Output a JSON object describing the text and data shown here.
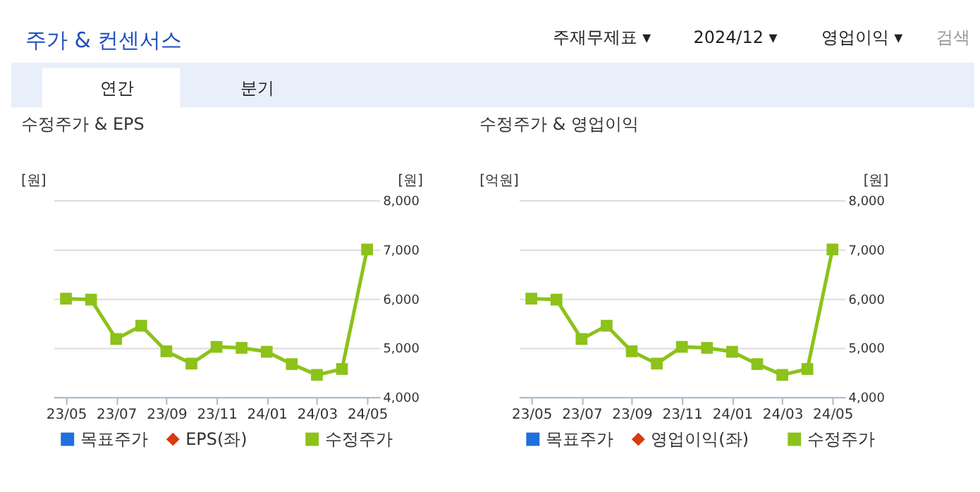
{
  "chart_data": [
    {
      "type": "line",
      "title": "수정주가 & EPS",
      "ylabel": "[원]",
      "y2label": "[원]",
      "annotations": [
        "주가 & 컨센서스",
        "주재무제표 ▾",
        "2024/12 ▾",
        "영업이익 ▾",
        "검색",
        "연간",
        "분기"
      ],
      "categories": [
        "23/05",
        null,
        "23/07",
        null,
        "23/09",
        null,
        "23/11",
        null,
        "24/01",
        null,
        "24/03",
        null,
        "24/05"
      ],
      "series": [
        {
          "name": "목표주가",
          "color": "#1f6fde",
          "marker": "square",
          "axis": "y2",
          "values": [
            null,
            null,
            null,
            null,
            null,
            null,
            null,
            null,
            null,
            null,
            null,
            null,
            null
          ]
        },
        {
          "name": "EPS(좌)",
          "color": "#d93a0f",
          "marker": "diamond",
          "values": [
            null,
            null,
            null,
            null,
            null,
            null,
            null,
            null,
            null,
            null,
            null,
            null,
            null
          ]
        },
        {
          "name": "수정주가",
          "color": "#8cc21a",
          "marker": "square",
          "axis": "y2",
          "values": [
            6000,
            5980,
            5180,
            5450,
            4930,
            4680,
            5020,
            5000,
            4920,
            4670,
            4450,
            4570,
            7000
          ]
        }
      ],
      "y2lim": [
        4000,
        8000
      ],
      "y2ticks": [
        {
          "value": 4000,
          "label": "4,000"
        },
        {
          "value": 5000,
          "label": "5,000"
        },
        {
          "value": 6000,
          "label": "6,000"
        },
        {
          "value": 7000,
          "label": "7,000"
        },
        {
          "value": 8000,
          "label": "8,000"
        }
      ],
      "grid": "y",
      "legend": "bottom"
    },
    {
      "type": "line",
      "title": "수정주가 & 영업이익",
      "ylabel": "[억원]",
      "y2label": "[원]",
      "categories": [
        "23/05",
        null,
        "23/07",
        null,
        "23/09",
        null,
        "23/11",
        null,
        "24/01",
        null,
        "24/03",
        null,
        "24/05"
      ],
      "series": [
        {
          "name": "목표주가",
          "color": "#1f6fde",
          "marker": "square",
          "axis": "y2",
          "values": [
            null,
            null,
            null,
            null,
            null,
            null,
            null,
            null,
            null,
            null,
            null,
            null,
            null
          ]
        },
        {
          "name": "영업이익(좌)",
          "color": "#d93a0f",
          "marker": "diamond",
          "values": [
            null,
            null,
            null,
            null,
            null,
            null,
            null,
            null,
            null,
            null,
            null,
            null,
            null
          ]
        },
        {
          "name": "수정주가",
          "color": "#8cc21a",
          "marker": "square",
          "axis": "y2",
          "values": [
            6000,
            5980,
            5180,
            5450,
            4930,
            4680,
            5020,
            5000,
            4920,
            4670,
            4450,
            4570,
            7000
          ]
        }
      ],
      "y2lim": [
        4000,
        8000
      ],
      "y2ticks": [
        {
          "value": 4000,
          "label": "4,000"
        },
        {
          "value": 5000,
          "label": "5,000"
        },
        {
          "value": 6000,
          "label": "6,000"
        },
        {
          "value": 7000,
          "label": "7,000"
        },
        {
          "value": 8000,
          "label": "8,000"
        }
      ],
      "grid": "y",
      "legend": "bottom"
    }
  ]
}
